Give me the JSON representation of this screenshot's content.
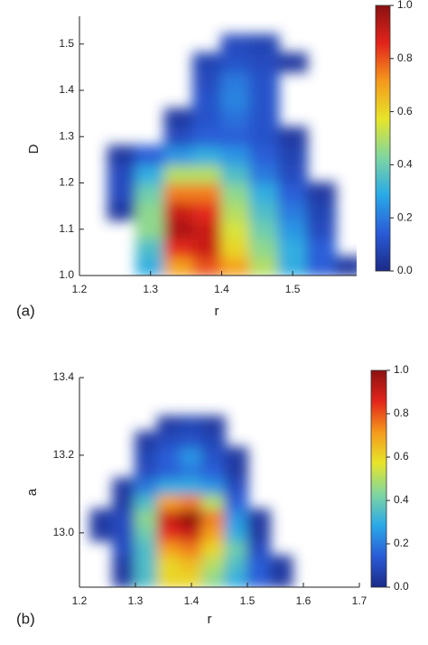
{
  "chart_data": [
    {
      "type": "heatmap",
      "panel_label": "(a)",
      "x_label": "r",
      "y_label": "D",
      "x": [
        1.22,
        1.26,
        1.3,
        1.34,
        1.38,
        1.42,
        1.46,
        1.5,
        1.54,
        1.58
      ],
      "y": [
        1.02,
        1.06,
        1.1,
        1.14,
        1.18,
        1.22,
        1.26,
        1.3,
        1.34,
        1.38,
        1.42,
        1.46,
        1.5
      ],
      "z": [
        [
          null,
          null,
          0.3,
          0.7,
          0.8,
          0.7,
          0.5,
          0.3,
          0.15,
          0.05
        ],
        [
          null,
          null,
          0.35,
          0.85,
          0.9,
          0.6,
          0.45,
          0.3,
          0.15,
          null
        ],
        [
          null,
          null,
          0.45,
          0.95,
          0.9,
          0.55,
          0.4,
          0.25,
          0.1,
          null
        ],
        [
          null,
          0.05,
          0.45,
          0.9,
          0.85,
          0.5,
          0.35,
          0.2,
          0.08,
          null
        ],
        [
          null,
          0.1,
          0.4,
          0.75,
          0.75,
          0.45,
          0.3,
          0.15,
          0.05,
          null
        ],
        [
          null,
          0.1,
          0.3,
          0.5,
          0.5,
          0.35,
          0.2,
          0.1,
          null,
          null
        ],
        [
          null,
          0.05,
          0.15,
          0.25,
          0.3,
          0.25,
          0.15,
          0.08,
          null,
          null
        ],
        [
          null,
          null,
          null,
          0.1,
          0.15,
          0.15,
          0.12,
          0.05,
          null,
          null
        ],
        [
          null,
          null,
          null,
          0.05,
          0.12,
          0.18,
          0.12,
          null,
          null,
          null
        ],
        [
          null,
          null,
          null,
          null,
          0.12,
          0.22,
          0.12,
          null,
          null,
          null
        ],
        [
          null,
          null,
          null,
          null,
          0.1,
          0.2,
          0.12,
          null,
          null,
          null
        ],
        [
          null,
          null,
          null,
          null,
          0.08,
          0.12,
          0.1,
          0.05,
          null,
          null
        ],
        [
          null,
          null,
          null,
          null,
          null,
          0.1,
          0.08,
          null,
          null,
          null
        ]
      ],
      "xlim": [
        1.2,
        1.59
      ],
      "ylim": [
        1.0,
        1.56
      ],
      "xticks": [
        1.2,
        1.3,
        1.4,
        1.5
      ],
      "yticks": [
        {
          "value": 1.0,
          "label": "1.0"
        },
        1.1,
        1.2,
        1.3,
        1.4,
        1.5
      ],
      "zlim": [
        0,
        1
      ],
      "zticks": [
        {
          "value": 0,
          "label": "0.0"
        },
        0.2,
        0.4,
        0.6,
        0.8,
        {
          "value": 1,
          "label": "1.0"
        }
      ],
      "colormap": [
        "#1b2a86",
        "#2a5bd7",
        "#29a9e8",
        "#7fd6a0",
        "#e6e52a",
        "#f59a1c",
        "#e3241b",
        "#8b1111"
      ]
    },
    {
      "type": "heatmap",
      "panel_label": "(b)",
      "x_label": "r",
      "y_label": "a",
      "x": [
        1.24,
        1.28,
        1.32,
        1.36,
        1.4,
        1.44,
        1.48,
        1.52,
        1.56,
        1.6
      ],
      "y": [
        12.88,
        12.92,
        12.96,
        13.0,
        13.04,
        13.08,
        13.12,
        13.16,
        13.2,
        13.24,
        13.28
      ],
      "z": [
        [
          null,
          0.05,
          0.35,
          0.6,
          0.6,
          0.45,
          0.3,
          0.15,
          0.05,
          null
        ],
        [
          null,
          0.05,
          0.35,
          0.6,
          0.65,
          0.5,
          0.35,
          0.15,
          0.05,
          null
        ],
        [
          null,
          0.1,
          0.35,
          0.7,
          0.75,
          0.6,
          0.4,
          0.1,
          null,
          null
        ],
        [
          0.05,
          0.1,
          0.4,
          0.85,
          0.9,
          0.7,
          0.3,
          0.05,
          null,
          null
        ],
        [
          0.05,
          0.1,
          0.45,
          0.9,
          1.0,
          0.75,
          0.25,
          0.05,
          null,
          null
        ],
        [
          null,
          0.05,
          0.35,
          0.7,
          0.75,
          0.5,
          0.15,
          null,
          null,
          null
        ],
        [
          null,
          0.05,
          0.2,
          0.3,
          0.3,
          0.25,
          0.1,
          null,
          null,
          null
        ],
        [
          null,
          null,
          0.1,
          0.15,
          0.2,
          0.15,
          0.05,
          null,
          null,
          null
        ],
        [
          null,
          null,
          0.08,
          0.15,
          0.25,
          0.12,
          0.05,
          null,
          null,
          null
        ],
        [
          null,
          null,
          0.05,
          0.1,
          0.12,
          0.08,
          null,
          null,
          null,
          null
        ],
        [
          null,
          null,
          null,
          0.05,
          0.08,
          0.05,
          null,
          null,
          null,
          null
        ]
      ],
      "xlim": [
        1.2,
        1.7
      ],
      "ylim": [
        12.86,
        13.4
      ],
      "xticks": [
        1.2,
        1.3,
        1.4,
        1.5,
        1.6,
        1.7
      ],
      "yticks": [
        {
          "value": 13.0,
          "label": "13.0"
        },
        {
          "value": 13.2,
          "label": "13.2"
        },
        {
          "value": 13.4,
          "label": "13.4"
        }
      ],
      "zlim": [
        0,
        1
      ],
      "zticks": [
        {
          "value": 0,
          "label": "0.0"
        },
        0.2,
        0.4,
        0.6,
        0.8,
        {
          "value": 1,
          "label": "1.0"
        }
      ],
      "colormap": [
        "#1b2a86",
        "#2a5bd7",
        "#29a9e8",
        "#7fd6a0",
        "#e6e52a",
        "#f59a1c",
        "#e3241b",
        "#8b1111"
      ]
    }
  ]
}
